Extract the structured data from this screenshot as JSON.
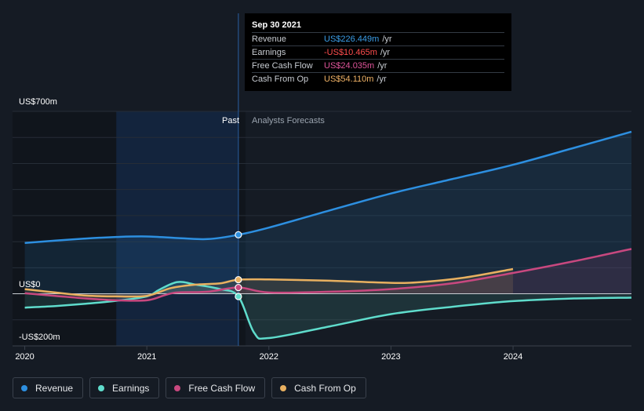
{
  "tooltip": {
    "date": "Sep 30 2021",
    "rows": [
      {
        "label": "Revenue",
        "value": "US$226.449m",
        "unit": "/yr",
        "color": "#3b9ee8"
      },
      {
        "label": "Earnings",
        "value": "-US$10.465m",
        "unit": "/yr",
        "color": "#ff4d4d"
      },
      {
        "label": "Free Cash Flow",
        "value": "US$24.035m",
        "unit": "/yr",
        "color": "#e0559a"
      },
      {
        "label": "Cash From Op",
        "value": "US$54.110m",
        "unit": "/yr",
        "color": "#f0b266"
      }
    ]
  },
  "legend": [
    {
      "label": "Revenue",
      "color": "#2d8fe0"
    },
    {
      "label": "Earnings",
      "color": "#5fdccc"
    },
    {
      "label": "Free Cash Flow",
      "color": "#c8487f"
    },
    {
      "label": "Cash From Op",
      "color": "#e8b060"
    }
  ],
  "chart_data": {
    "type": "line",
    "title": "",
    "xlabel": "",
    "ylabel": "",
    "x_ticks": [
      "2020",
      "2021",
      "2022",
      "2023",
      "2024"
    ],
    "y_labels": [
      "US$700m",
      "US$0",
      "-US$200m"
    ],
    "ylim": [
      -200,
      700
    ],
    "xlim": [
      2019.9,
      2024.97
    ],
    "past_label": "Past",
    "forecast_label": "Analysts Forecasts",
    "past_end": 2021.75,
    "highlight_start": 2020.75,
    "grid": true,
    "series": [
      {
        "name": "Revenue",
        "color": "#2d8fe0",
        "points": [
          [
            2020.0,
            195
          ],
          [
            2020.25,
            204
          ],
          [
            2020.5,
            212
          ],
          [
            2020.75,
            218
          ],
          [
            2021.0,
            220
          ],
          [
            2021.25,
            214
          ],
          [
            2021.5,
            210
          ],
          [
            2021.75,
            226.449
          ],
          [
            2022.0,
            254
          ],
          [
            2022.5,
            320
          ],
          [
            2023.0,
            385
          ],
          [
            2023.5,
            440
          ],
          [
            2024.0,
            495
          ],
          [
            2024.5,
            560
          ],
          [
            2024.97,
            622
          ]
        ]
      },
      {
        "name": "Earnings",
        "color": "#5fdccc",
        "points": [
          [
            2020.0,
            -53
          ],
          [
            2020.25,
            -47
          ],
          [
            2020.5,
            -38
          ],
          [
            2020.75,
            -27
          ],
          [
            2021.0,
            -10
          ],
          [
            2021.1,
            15
          ],
          [
            2021.25,
            45
          ],
          [
            2021.4,
            35
          ],
          [
            2021.6,
            18
          ],
          [
            2021.75,
            -10.465
          ],
          [
            2021.88,
            -150
          ],
          [
            2022.0,
            -170
          ],
          [
            2022.5,
            -125
          ],
          [
            2023.0,
            -78
          ],
          [
            2023.5,
            -50
          ],
          [
            2024.0,
            -28
          ],
          [
            2024.5,
            -18
          ],
          [
            2024.97,
            -15
          ]
        ]
      },
      {
        "name": "Free Cash Flow",
        "color": "#c8487f",
        "points": [
          [
            2020.0,
            2
          ],
          [
            2020.25,
            -8
          ],
          [
            2020.5,
            -18
          ],
          [
            2020.75,
            -25
          ],
          [
            2021.0,
            -25
          ],
          [
            2021.15,
            -5
          ],
          [
            2021.25,
            5
          ],
          [
            2021.5,
            8
          ],
          [
            2021.75,
            24.035
          ],
          [
            2022.0,
            5
          ],
          [
            2022.5,
            8
          ],
          [
            2023.0,
            18
          ],
          [
            2023.5,
            40
          ],
          [
            2024.0,
            80
          ],
          [
            2024.5,
            125
          ],
          [
            2024.97,
            172
          ]
        ]
      },
      {
        "name": "Cash From Op",
        "color": "#e8b060",
        "points": [
          [
            2020.0,
            18
          ],
          [
            2020.25,
            5
          ],
          [
            2020.5,
            -7
          ],
          [
            2020.75,
            -10
          ],
          [
            2021.0,
            -8
          ],
          [
            2021.2,
            22
          ],
          [
            2021.4,
            35
          ],
          [
            2021.6,
            40
          ],
          [
            2021.75,
            54.11
          ],
          [
            2022.0,
            55
          ],
          [
            2022.5,
            50
          ],
          [
            2023.0,
            42
          ],
          [
            2023.25,
            45
          ],
          [
            2023.6,
            62
          ],
          [
            2024.0,
            95
          ]
        ]
      }
    ]
  }
}
